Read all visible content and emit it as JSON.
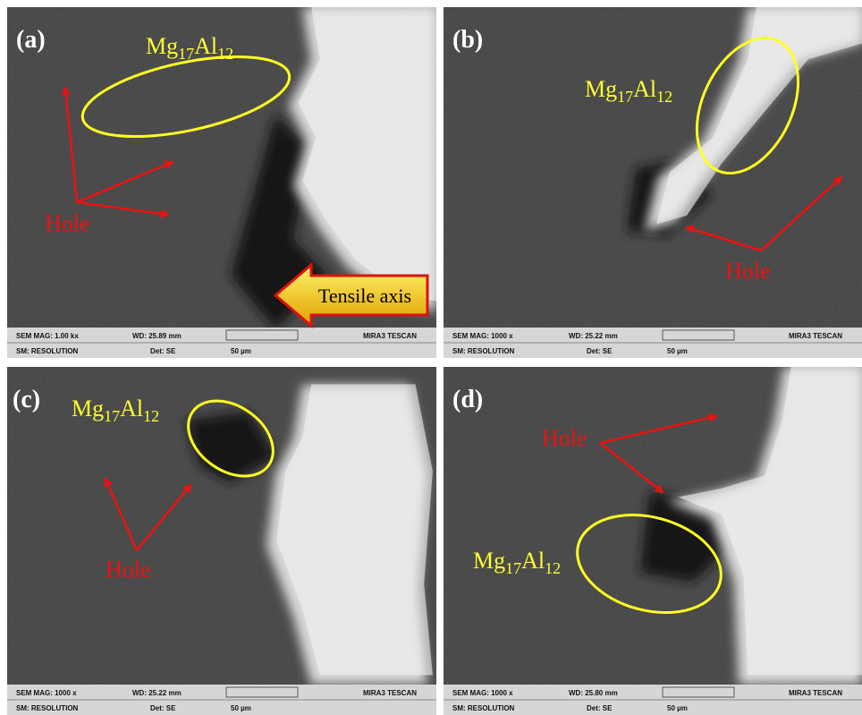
{
  "panels": [
    {
      "label": "(a)",
      "phase": [
        "Mg",
        "17",
        "Al",
        "12"
      ],
      "hole": "Hole",
      "axis_label": "Tensile axis",
      "info": {
        "mag": "SEM MAG: 1.00 kx",
        "wd": "WD: 25.89 mm",
        "brand": "MIRA3 TESCAN",
        "mode": "SM: RESOLUTION",
        "det": "Det: SE",
        "scale": "50 µm"
      }
    },
    {
      "label": "(b)",
      "phase": [
        "Mg",
        "17",
        "Al",
        "12"
      ],
      "hole": "Hole",
      "info": {
        "mag": "SEM MAG: 1000 x",
        "wd": "WD: 25.22 mm",
        "brand": "MIRA3 TESCAN",
        "mode": "SM: RESOLUTION",
        "det": "Det: SE",
        "scale": "50 µm"
      }
    },
    {
      "label": "(c)",
      "phase": [
        "Mg",
        "17",
        "Al",
        "12"
      ],
      "hole": "Hole",
      "info": {
        "mag": "SEM MAG: 1000 x",
        "wd": "WD: 25.22 mm",
        "brand": "MIRA3 TESCAN",
        "mode": "SM: RESOLUTION",
        "det": "Det: SE",
        "scale": "50 µm"
      }
    },
    {
      "label": "(d)",
      "phase": [
        "Mg",
        "17",
        "Al",
        "12"
      ],
      "hole": "Hole",
      "info": {
        "mag": "SEM MAG: 1000 x",
        "wd": "WD: 25.80 mm",
        "brand": "MIRA3 TESCAN",
        "mode": "SM: RESOLUTION",
        "det": "Det: SE",
        "scale": "50 µm"
      }
    }
  ]
}
